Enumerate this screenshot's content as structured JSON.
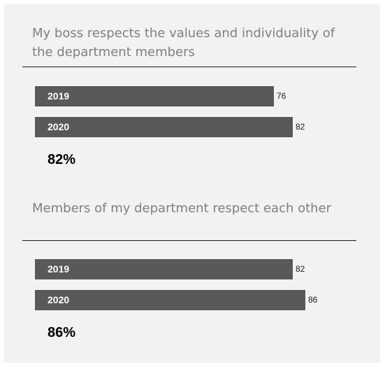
{
  "chart_data": [
    {
      "type": "bar",
      "orientation": "horizontal",
      "title": "My boss respects the values and individuality of the department members",
      "categories": [
        "2019",
        "2020"
      ],
      "values": [
        76,
        82
      ],
      "highlight": "82%",
      "bar_color": "#595959",
      "background_color": "#f2f2f2"
    },
    {
      "type": "bar",
      "orientation": "horizontal",
      "title": "Members of my department respect each other",
      "categories": [
        "2019",
        "2020"
      ],
      "values": [
        82,
        86
      ],
      "highlight": "86%",
      "bar_color": "#595959",
      "background_color": "#f2f2f2"
    }
  ]
}
